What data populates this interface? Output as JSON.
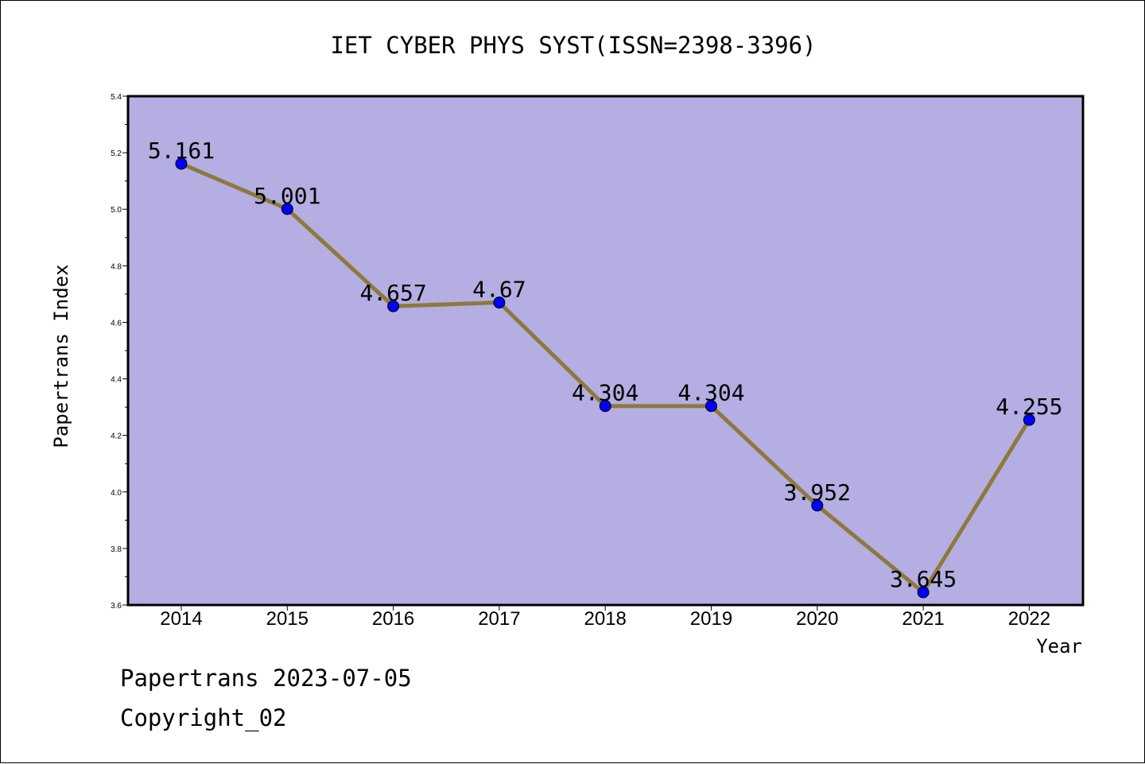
{
  "chart_data": {
    "type": "line",
    "title": "IET CYBER PHYS SYST(ISSN=2398-3396)",
    "xlabel": "Year",
    "ylabel": "Papertrans Index",
    "categories": [
      "2014",
      "2015",
      "2016",
      "2017",
      "2018",
      "2019",
      "2020",
      "2021",
      "2022"
    ],
    "values": [
      5.161,
      5.001,
      4.657,
      4.67,
      4.304,
      4.304,
      3.952,
      3.645,
      4.255
    ],
    "value_labels": [
      "5.161",
      "5.001",
      "4.657",
      "4.67",
      "4.304",
      "4.304",
      "3.952",
      "3.645",
      "4.255"
    ],
    "ylim": [
      3.6,
      5.4
    ],
    "yticks": [
      "3.6",
      "3.8",
      "4.0",
      "4.2",
      "4.4",
      "4.6",
      "4.8",
      "5.0",
      "5.2",
      "5.4"
    ],
    "grid": false,
    "colors": {
      "plot_background": "#b4aee2",
      "line": "#8c7a3c",
      "marker": "#0000ff"
    }
  },
  "footer": {
    "date_line": "Papertrans 2023-07-05",
    "copyright_line": "Copyright_02"
  }
}
